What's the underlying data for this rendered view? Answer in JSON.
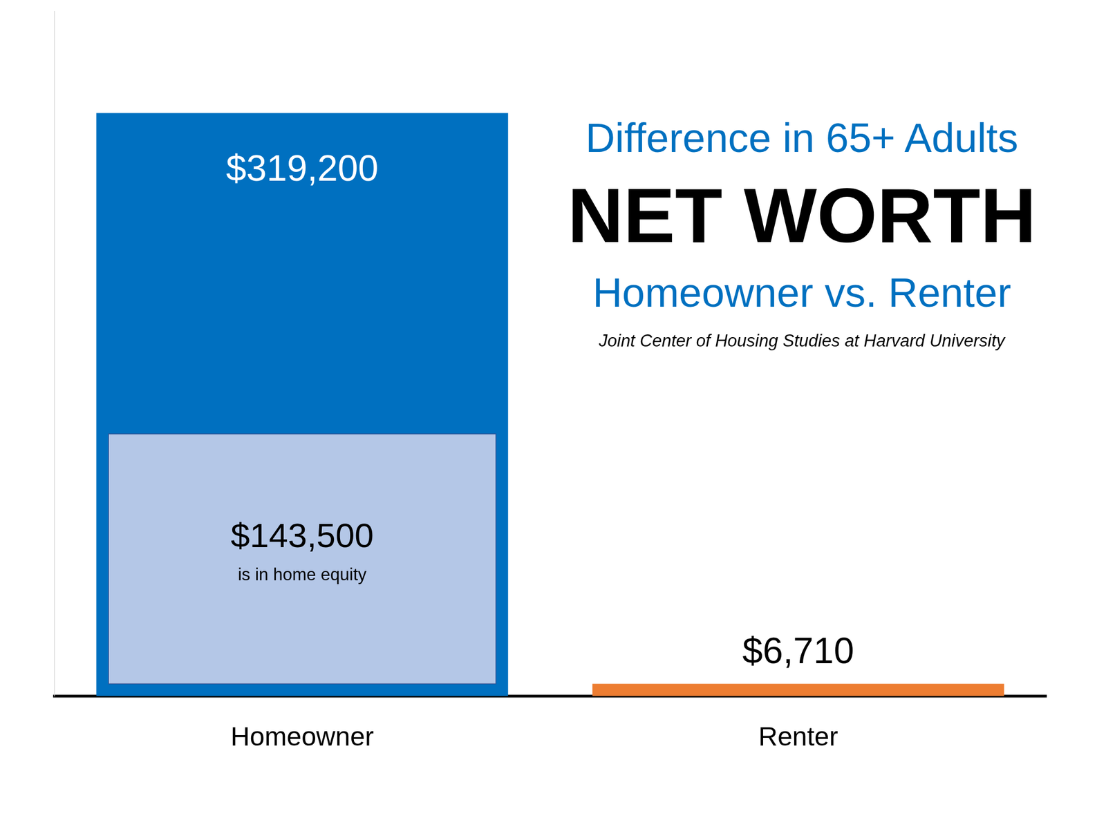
{
  "chart_data": {
    "type": "bar",
    "header": "Difference in 65+ Adults",
    "title": "NET WORTH",
    "subtitle": "Homeowner vs. Renter",
    "source": "Joint Center of Housing Studies at Harvard University",
    "categories": [
      "Homeowner",
      "Renter"
    ],
    "values": [
      319200,
      6710
    ],
    "value_labels": [
      "$319,200",
      "$6,710"
    ],
    "colors": [
      "#0070c0",
      "#ed7d31"
    ],
    "home_equity": {
      "category": "Homeowner",
      "value": 143500,
      "value_label": "$143,500",
      "label": "is in home equity",
      "color": "#b4c7e7"
    },
    "ylim": [
      0,
      375000
    ],
    "grid": false,
    "data_labels": true,
    "tick_labels": "x"
  }
}
